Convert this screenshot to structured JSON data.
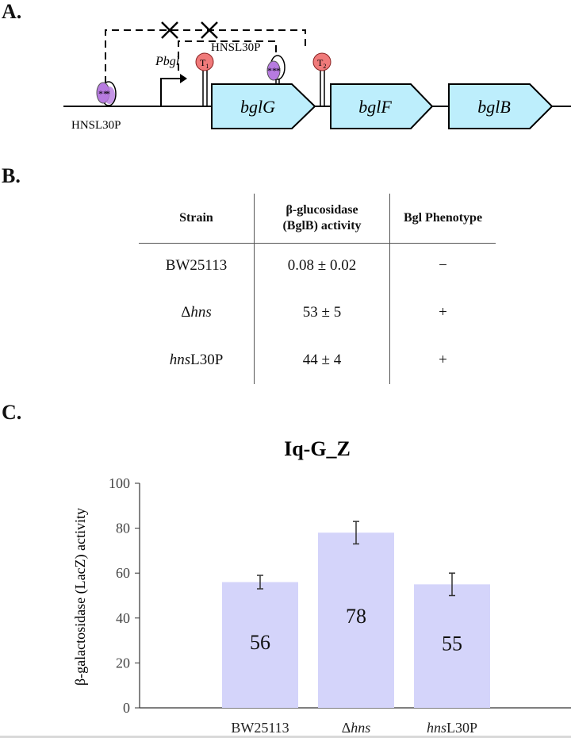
{
  "panels": {
    "a": {
      "label": "A."
    },
    "b": {
      "label": "B."
    },
    "c": {
      "label": "C."
    }
  },
  "diagram": {
    "promoter_label": "Pbgl",
    "hns_left_label": "HNSL30P",
    "hns_mid_label": "HNSL30P",
    "terminators": [
      "T1",
      "T2"
    ],
    "genes": [
      "bglG",
      "bglF",
      "bglB"
    ],
    "colors": {
      "gene_fill": "#bdeefc",
      "terminator_fill": "#f07a7a",
      "hns_fill": "#b77be0"
    }
  },
  "table": {
    "headers": {
      "strain": "Strain",
      "activity_line1": "β-glucosidase",
      "activity_line2": "(BglB) activity",
      "phenotype": "Bgl Phenotype"
    },
    "rows": [
      {
        "strain_prefix": "BW25113",
        "strain_italic": "",
        "strain_suffix": "",
        "activity": "0.08 ± 0.02",
        "phenotype": "−"
      },
      {
        "strain_prefix": "Δ",
        "strain_italic": "hns",
        "strain_suffix": "",
        "activity": "53 ± 5",
        "phenotype": "+"
      },
      {
        "strain_prefix": "",
        "strain_italic": "hns",
        "strain_suffix": "L30P",
        "activity": "44 ± 4",
        "phenotype": "+"
      }
    ]
  },
  "chart_data": {
    "type": "bar",
    "title": "Iq-G_Z",
    "ylabel": "β-galactosidase (LacZ) activity",
    "xlabel": "",
    "ylim": [
      0,
      100
    ],
    "yticks": [
      0,
      20,
      40,
      60,
      80,
      100
    ],
    "categories": [
      {
        "prefix": "BW25113",
        "italic": "",
        "suffix": ""
      },
      {
        "prefix": "Δ",
        "italic": "hns",
        "suffix": ""
      },
      {
        "prefix": "",
        "italic": "hns",
        "suffix": "L30P"
      }
    ],
    "values": [
      56,
      78,
      55
    ],
    "error_low": [
      53,
      73,
      50
    ],
    "error_high": [
      59,
      83,
      60
    ],
    "data_labels": [
      "56",
      "78",
      "55"
    ],
    "bar_color": "#d4d4fa",
    "grid": false
  }
}
